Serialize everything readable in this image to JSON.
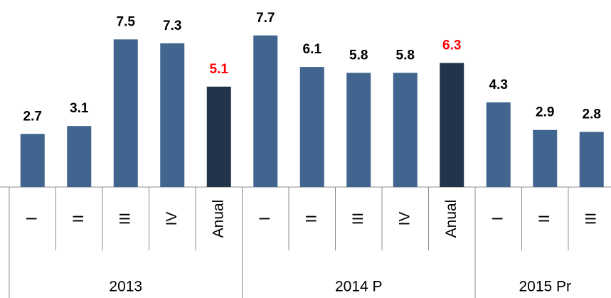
{
  "chart_data": {
    "type": "bar",
    "groups": [
      {
        "name": "2013",
        "categories": [
          "I",
          "II",
          "III",
          "IV",
          "Anual"
        ],
        "values": [
          2.7,
          3.1,
          7.5,
          7.3,
          5.1
        ],
        "colors": [
          "#41658e",
          "#41658e",
          "#41658e",
          "#41658e",
          "#22344a"
        ],
        "label_colors": [
          "#000000",
          "#000000",
          "#000000",
          "#000000",
          "#ff0000"
        ]
      },
      {
        "name": "2014 P",
        "categories": [
          "I",
          "II",
          "III",
          "IV",
          "Anual"
        ],
        "values": [
          7.7,
          6.1,
          5.8,
          5.8,
          6.3
        ],
        "colors": [
          "#41658e",
          "#41658e",
          "#41658e",
          "#41658e",
          "#22344a"
        ],
        "label_colors": [
          "#000000",
          "#000000",
          "#000000",
          "#000000",
          "#ff0000"
        ]
      },
      {
        "name": "2015 Pr",
        "categories": [
          "I",
          "II",
          "III"
        ],
        "values": [
          4.3,
          2.9,
          2.8
        ],
        "colors": [
          "#41658e",
          "#41658e",
          "#41658e"
        ],
        "label_colors": [
          "#000000",
          "#000000",
          "#000000"
        ]
      }
    ],
    "ylim": [
      0,
      9.5
    ]
  }
}
